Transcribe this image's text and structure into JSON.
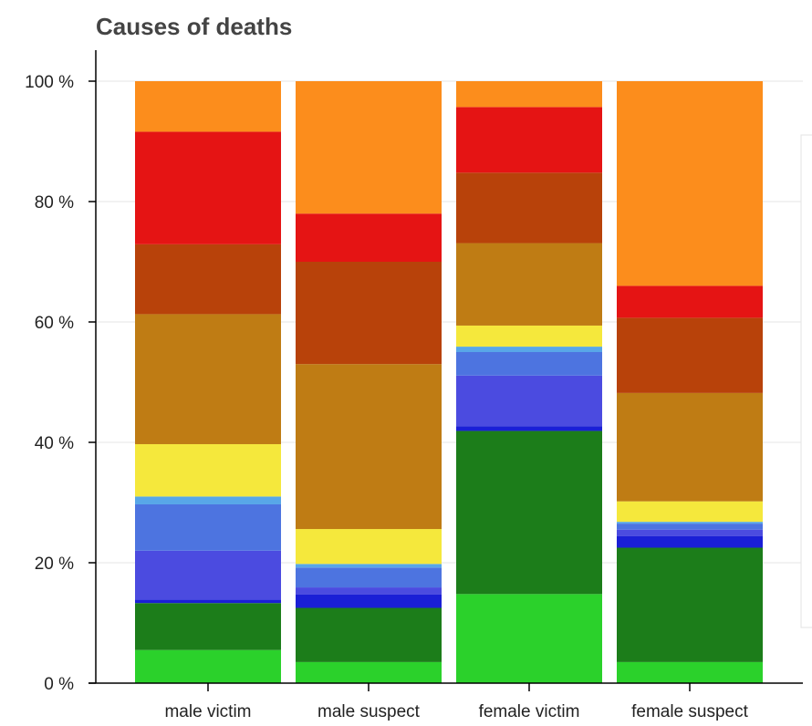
{
  "chart_data": {
    "type": "bar",
    "stacked": true,
    "normalized": true,
    "title": "Causes of deaths",
    "categories": [
      "male victim",
      "male suspect",
      "female victim",
      "female suspect"
    ],
    "ylim": [
      0,
      100
    ],
    "yticks": [
      0,
      20,
      40,
      60,
      80,
      100
    ],
    "ytick_labels": [
      "0 %",
      "20 %",
      "40 %",
      "60 %",
      "80 %",
      "100 %"
    ],
    "grid": true,
    "legend": "right (partially visible, no text)",
    "series": [
      {
        "color": "#2bd12b",
        "values": [
          5.5,
          3.5,
          14.8,
          3.5
        ]
      },
      {
        "color": "#1c7d1a",
        "values": [
          7.8,
          9.0,
          27.1,
          19.0
        ]
      },
      {
        "color": "#1a1fd6",
        "values": [
          0.6,
          2.2,
          0.8,
          1.9
        ]
      },
      {
        "color": "#4b4be0",
        "values": [
          8.1,
          1.2,
          8.4,
          1.1
        ]
      },
      {
        "color": "#4d74e0",
        "values": [
          7.7,
          3.3,
          3.9,
          1.0
        ]
      },
      {
        "color": "#58a7e8",
        "values": [
          1.3,
          0.6,
          0.9,
          0.3
        ]
      },
      {
        "color": "#f5e83c",
        "values": [
          8.7,
          5.8,
          3.5,
          3.4
        ]
      },
      {
        "color": "#bf7c14",
        "values": [
          21.6,
          27.4,
          13.7,
          18.0
        ]
      },
      {
        "color": "#b8420a",
        "values": [
          11.6,
          17.0,
          11.7,
          12.5
        ]
      },
      {
        "color": "#e51414",
        "values": [
          18.7,
          8.0,
          10.9,
          5.3
        ]
      },
      {
        "color": "#fc8d1c",
        "values": [
          8.4,
          22.0,
          4.3,
          34.0
        ]
      }
    ]
  }
}
